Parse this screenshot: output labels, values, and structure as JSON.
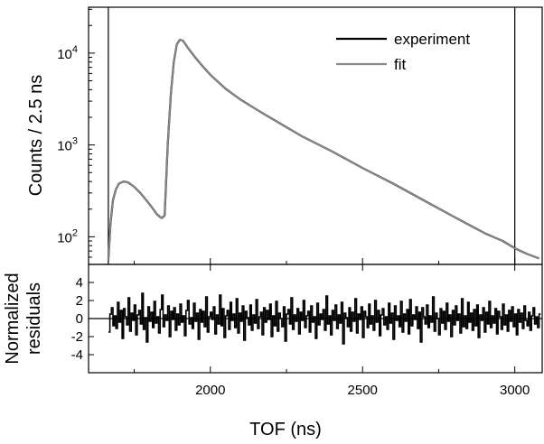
{
  "chart_data": [
    {
      "type": "line",
      "panel": "top",
      "ylabel": "Counts / 2.5 ns",
      "yscale": "log",
      "ylim": [
        50,
        31623
      ],
      "xlim": [
        1600,
        3090
      ],
      "yticks": [
        {
          "value": 100,
          "base": "10",
          "exp": "2"
        },
        {
          "value": 1000,
          "base": "10",
          "exp": "3"
        },
        {
          "value": 10000,
          "base": "10",
          "exp": "4"
        }
      ],
      "vlines": [
        1665,
        3000
      ],
      "legend": {
        "position": "top-right"
      },
      "series": [
        {
          "name": "experiment",
          "color": "#000000",
          "x": [
            1665,
            1672,
            1680,
            1690,
            1700,
            1715,
            1730,
            1750,
            1770,
            1790,
            1810,
            1825,
            1840,
            1850,
            1860,
            1870,
            1880,
            1890,
            1900,
            1910,
            1930,
            1950,
            1970,
            2000,
            2050,
            2100,
            2150,
            2200,
            2300,
            2400,
            2500,
            2600,
            2700,
            2800,
            2900,
            2960,
            3000,
            3040,
            3080
          ],
          "y": [
            55,
            140,
            250,
            330,
            380,
            400,
            390,
            350,
            300,
            250,
            205,
            175,
            160,
            170,
            1000,
            3500,
            8000,
            12500,
            14000,
            13700,
            11000,
            9000,
            7500,
            5800,
            4100,
            3100,
            2450,
            1950,
            1250,
            850,
            560,
            380,
            250,
            165,
            110,
            90,
            75,
            65,
            58
          ]
        },
        {
          "name": "fit",
          "color": "#8a8a8a",
          "x": [
            1665,
            1672,
            1680,
            1690,
            1700,
            1715,
            1730,
            1750,
            1770,
            1790,
            1810,
            1825,
            1840,
            1850,
            1860,
            1870,
            1880,
            1890,
            1900,
            1910,
            1930,
            1950,
            1970,
            2000,
            2050,
            2100,
            2150,
            2200,
            2300,
            2400,
            2500,
            2600,
            2700,
            2800,
            2900,
            2960,
            3000,
            3040,
            3080
          ],
          "y": [
            55,
            140,
            250,
            330,
            380,
            400,
            390,
            350,
            300,
            250,
            205,
            175,
            160,
            170,
            1000,
            3500,
            8000,
            12500,
            14000,
            13700,
            11000,
            9000,
            7500,
            5800,
            4100,
            3100,
            2450,
            1950,
            1250,
            850,
            560,
            380,
            250,
            165,
            110,
            90,
            75,
            65,
            58
          ]
        }
      ]
    },
    {
      "type": "line",
      "panel": "bottom",
      "xlabel": "TOF (ns)",
      "ylabel_lines": [
        "Normalized",
        "residuals"
      ],
      "xlim": [
        1600,
        3090
      ],
      "ylim": [
        -6,
        6
      ],
      "yticks": [
        "4",
        "2",
        "0",
        "-2",
        "-4"
      ],
      "xticks": [
        "2000",
        "2500",
        "3000"
      ],
      "hline": 0,
      "series": [
        {
          "name": "residuals",
          "color": "#000000",
          "x_start": 1665,
          "x_step": 5,
          "y": [
            -1.5,
            0.5,
            1.2,
            -0.8,
            0.3,
            -1.1,
            1.8,
            -0.4,
            0.9,
            -2.2,
            1.1,
            0.2,
            -0.7,
            2.3,
            -1.4,
            0.6,
            -0.2,
            1.5,
            -1.8,
            0.4,
            0.9,
            -0.6,
            2.8,
            -1.2,
            0.1,
            -2.6,
            1.3,
            -0.3,
            0.7,
            -1.0,
            1.9,
            -0.5,
            0.2,
            -1.6,
            1.0,
            2.6,
            -0.9,
            0.4,
            -0.2,
            1.4,
            -2.0,
            0.8,
            -0.1,
            1.2,
            -1.3,
            0.5,
            -0.7,
            1.6,
            -0.4,
            0.3,
            -1.9,
            0.9,
            2.0,
            -0.6,
            0.1,
            -1.1,
            1.7,
            -0.3,
            0.6,
            -2.3,
            1.0,
            -0.4,
            0.8,
            -0.9,
            2.4,
            -1.5,
            0.2,
            0.7,
            -0.1,
            1.3,
            -1.7,
            0.4,
            -0.6,
            2.6,
            -0.8,
            1.1,
            -2.1,
            0.3,
            0.9,
            -1.2,
            1.8,
            -0.2,
            0.5,
            -1.0,
            2.2,
            -1.6,
            0.6,
            -0.3,
            1.4,
            -2.4,
            0.8,
            0.1,
            -0.7,
            1.5,
            -1.3,
            0.4,
            -0.5,
            2.1,
            -1.1,
            0.2,
            0.7,
            -1.8,
            1.2,
            -0.4,
            0.9,
            -0.1,
            1.6,
            -2.0,
            0.3,
            -0.8,
            1.9,
            -1.4,
            0.6,
            0.0,
            -0.9,
            1.3,
            -2.5,
            0.5,
            1.0,
            -0.6,
            2.3,
            -1.2,
            0.4,
            -0.3,
            1.1,
            -1.7,
            0.7,
            -0.2,
            2.0,
            -1.0,
            0.3,
            0.8,
            -1.5,
            1.4,
            -0.4,
            0.2,
            -2.2,
            1.7,
            -0.7,
            0.5,
            -0.1,
            1.0,
            -1.3,
            2.5,
            -0.6,
            0.3,
            -1.8,
            0.9,
            -0.2,
            1.5,
            -1.1,
            0.4,
            -0.5,
            1.8,
            -2.8,
            0.6,
            0.1,
            -0.9,
            1.2,
            -1.4,
            0.7,
            -0.3,
            2.2,
            -1.6,
            0.5,
            -0.1,
            1.3,
            -2.1,
            0.8,
            0.2,
            -1.0,
            1.6,
            -0.6,
            0.3,
            -1.3,
            2.0,
            -0.4,
            0.9,
            -1.9,
            0.4,
            1.1,
            -0.7,
            0.2,
            -1.2,
            1.7,
            -0.5,
            0.6,
            -2.3,
            1.4,
            -0.2,
            0.3,
            -0.9,
            1.9,
            -1.5,
            0.5,
            -0.3,
            1.0,
            -1.7,
            2.1,
            -0.8,
            0.4,
            -0.1,
            1.3,
            -1.1,
            0.7,
            -2.6,
            1.2,
            0.2,
            -0.6,
            1.5,
            -1.0,
            0.3,
            -0.4,
            2.4,
            -1.4,
            0.6,
            0.0,
            -1.8,
            1.1,
            -0.5,
            0.8,
            -1.2,
            1.7,
            -0.3,
            0.4,
            -2.0,
            0.9,
            -0.7,
            1.4,
            -0.2,
            0.5,
            -1.6,
            2.2,
            -0.9,
            0.3,
            -1.1,
            1.8,
            -0.4,
            0.6,
            -1.3,
            1.0,
            -0.8,
            1.5,
            -2.1,
            0.4,
            -0.2,
            1.2,
            -1.5,
            0.7,
            -0.6,
            1.9,
            -1.0,
            0.3,
            -0.5,
            1.1,
            -1.7,
            0.8,
            0.2,
            -1.2,
            1.6,
            -0.7,
            0.4,
            -1.4,
            0.9,
            -0.3,
            1.3,
            -0.9,
            0.5,
            -1.8,
            1.0,
            -0.4,
            0.6,
            -1.1,
            1.4,
            -0.2,
            -0.8,
            0.7,
            -1.3,
            0.3,
            1.2,
            -0.6,
            0.2,
            -1.0,
            0.5
          ]
        }
      ]
    }
  ]
}
